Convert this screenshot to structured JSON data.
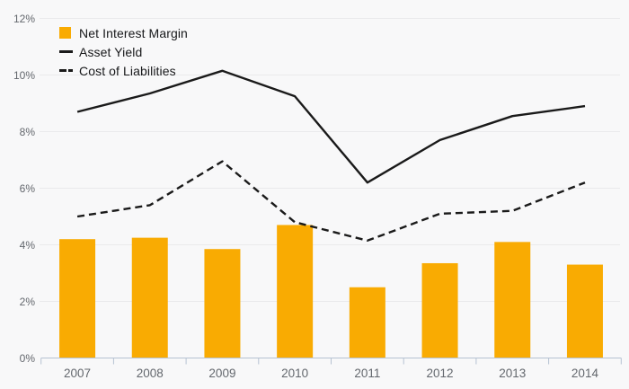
{
  "chart_data": {
    "type": "combo_bar_line",
    "title": "",
    "categories": [
      "2007",
      "2008",
      "2009",
      "2010",
      "2011",
      "2012",
      "2013",
      "2014"
    ],
    "series": [
      {
        "name": "Net Interest Margin",
        "type": "bar",
        "line_style": "none",
        "color": "#F9AB02",
        "values": [
          4.2,
          4.25,
          3.85,
          4.7,
          2.5,
          3.35,
          4.1,
          3.3
        ]
      },
      {
        "name": "Asset Yield",
        "type": "line",
        "line_style": "solid",
        "color": "#1A1A1A",
        "values": [
          8.7,
          9.35,
          10.15,
          9.25,
          6.2,
          7.7,
          8.55,
          8.9
        ]
      },
      {
        "name": "Cost of Liabilities",
        "type": "line",
        "line_style": "dashed",
        "color": "#1A1A1A",
        "values": [
          5.0,
          5.4,
          6.95,
          4.8,
          4.15,
          5.1,
          5.2,
          6.2
        ]
      }
    ],
    "unit": "%",
    "ylim": [
      0,
      12
    ],
    "ytick_step": 2,
    "ytick_labels": [
      "0%",
      "2%",
      "4%",
      "6%",
      "8%",
      "10%",
      "12%"
    ],
    "grid": "horizontal",
    "legend_position": "top-left"
  },
  "colors": {
    "background": "#F8F8F9",
    "gridline": "#EAEAEC",
    "axis": "#B6C2D2",
    "bar": "#F9AB02",
    "line": "#1A1A1A",
    "axis_label": "#63676D",
    "legend_text": "#17181A"
  }
}
